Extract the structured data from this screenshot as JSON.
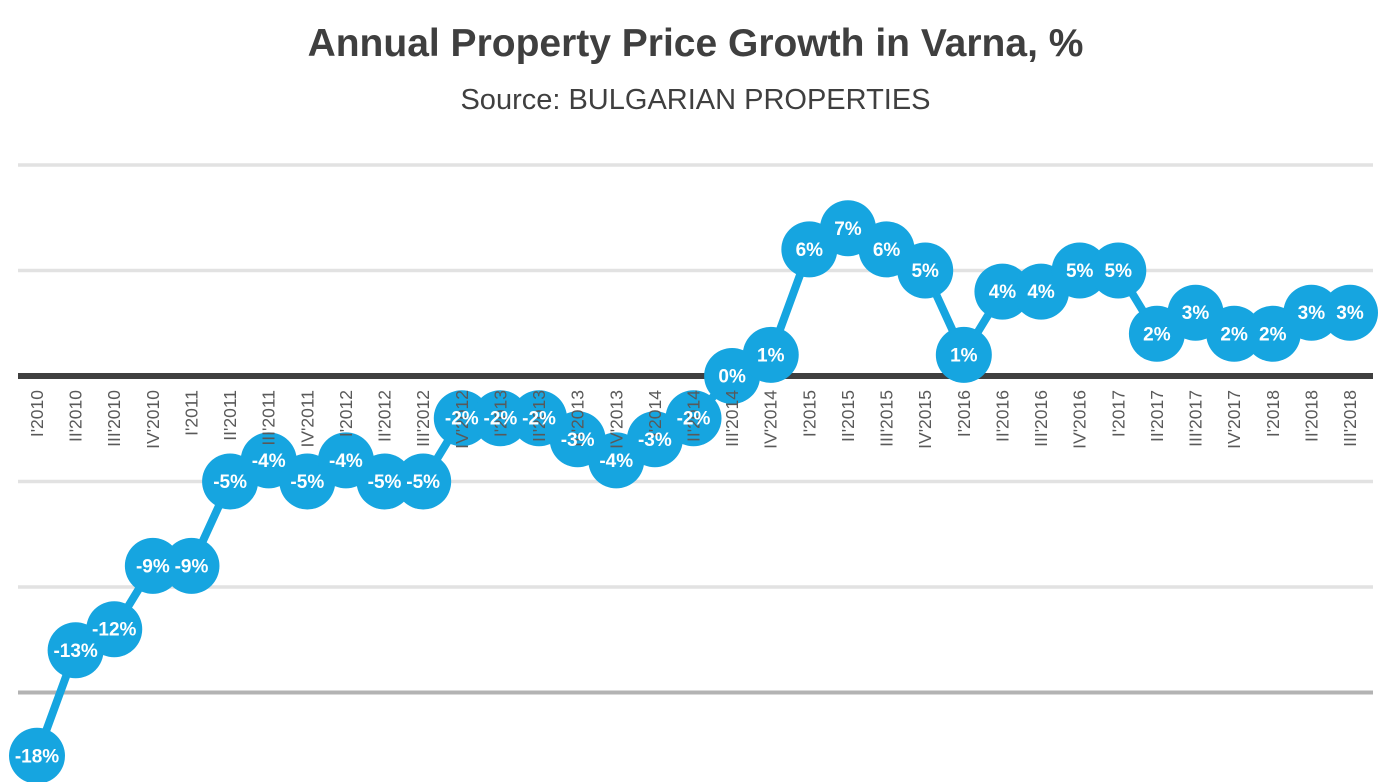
{
  "title": "Annual Property Price Growth in Varna, %",
  "subtitle": "Source: BULGARIAN PROPERTIES",
  "chart_data": {
    "type": "line",
    "title": "Annual Property Price Growth in Varna, %",
    "subtitle": "Source: BULGARIAN PROPERTIES",
    "xlabel": "",
    "ylabel": "",
    "legend": "none",
    "grid": "horizontal",
    "ylim": [
      -20,
      10
    ],
    "gridline_step": 5,
    "data_label_format": "{value}%",
    "categories": [
      "I'2010",
      "II'2010",
      "III'2010",
      "IV'2010",
      "I'2011",
      "II'2011",
      "III'2011",
      "IV'2011",
      "I'2012",
      "II'2012",
      "III'2012",
      "IV'2012",
      "I'2013",
      "II'2013",
      "III'2013",
      "IV'2013",
      "I'2014",
      "II'2014",
      "III'2014",
      "IV'2014",
      "I'2015",
      "II'2015",
      "III'2015",
      "IV'2015",
      "I'2016",
      "II'2016",
      "III'2016",
      "IV'2016",
      "I'2017",
      "II'2017",
      "III'2017",
      "IV'2017",
      "I'2018",
      "II'2018",
      "III'2018"
    ],
    "values": [
      -18,
      -13,
      -12,
      -9,
      -9,
      -5,
      -4,
      -5,
      -4,
      -5,
      -5,
      -2,
      -2,
      -2,
      -3,
      -4,
      -3,
      -2,
      0,
      1,
      6,
      7,
      6,
      5,
      1,
      4,
      4,
      5,
      5,
      2,
      3,
      2,
      2,
      3,
      3
    ],
    "data_labels": [
      "-18%",
      "-13%",
      "-12%",
      "-9%",
      "-9%",
      "-5%",
      "-4%",
      "-5%",
      "-4%",
      "-5%",
      "-5%",
      "-2%",
      "-2%",
      "-2%",
      "-3%",
      "-4%",
      "-3%",
      "-2%",
      "0%",
      "1%",
      "6%",
      "7%",
      "6%",
      "5%",
      "1%",
      "4%",
      "4%",
      "5%",
      "5%",
      "2%",
      "3%",
      "2%",
      "2%",
      "3%",
      "3%"
    ],
    "colors": {
      "marker": "#16A5E0",
      "line": "#16A5E0",
      "data_label": "#FFFFFF",
      "axis_tick_label": "#595959",
      "zero_axis_line": "#3F3F3F",
      "gridline": "#E2E2E2",
      "bottom_gridline": "#B3B3B3",
      "title": "#3F3F3F",
      "background": "#FFFFFF"
    }
  }
}
